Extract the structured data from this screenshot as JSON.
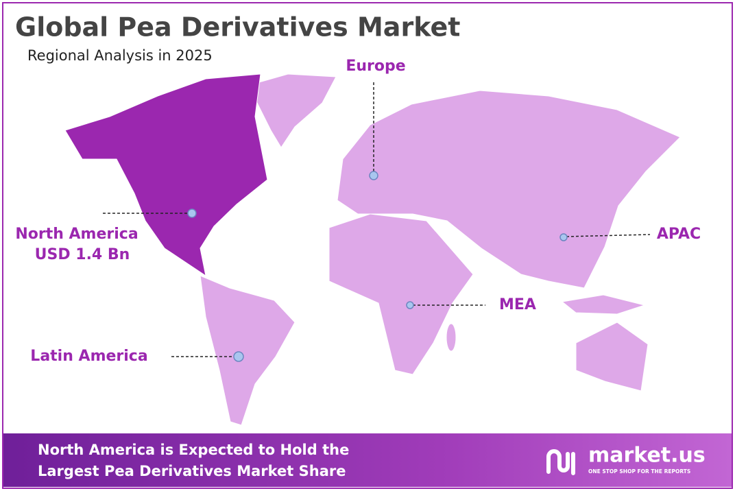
{
  "header": {
    "title": "Global Pea Derivatives Market",
    "subtitle": "Regional Analysis in 2025"
  },
  "regions": [
    {
      "label": "Europe"
    },
    {
      "label": "North America",
      "value": "USD 1.4 Bn"
    },
    {
      "label": "APAC"
    },
    {
      "label": "MEA"
    },
    {
      "label": "Latin America"
    }
  ],
  "footer": {
    "lines": [
      "North America is Expected to Hold the",
      "Largest Pea Derivatives Market Share"
    ]
  },
  "logo": {
    "name": "market.us",
    "tagline": "ONE STOP SHOP FOR THE REPORTS"
  }
}
